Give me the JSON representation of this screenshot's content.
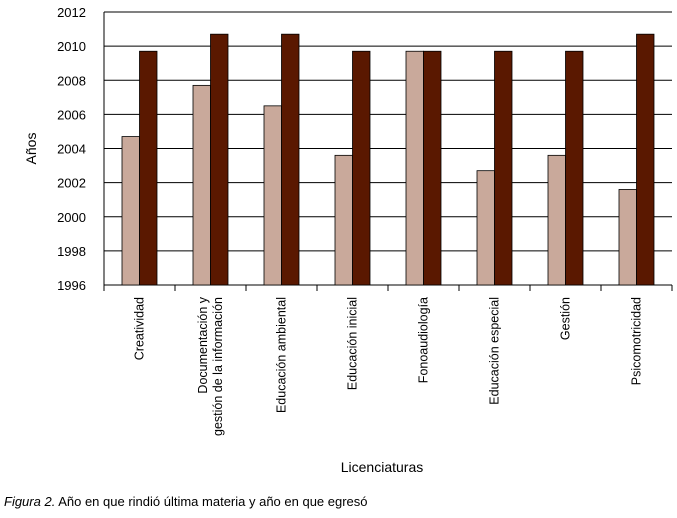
{
  "chart_data": {
    "type": "bar",
    "xlabel": "Licenciaturas",
    "ylabel": "Años",
    "ylim": [
      1996,
      2012
    ],
    "yticks": [
      1996,
      1998,
      2000,
      2002,
      2004,
      2006,
      2008,
      2010,
      2012
    ],
    "grid": true,
    "legend": "none",
    "categories": [
      "Creatividad",
      "Documentación y\ngestión de la información",
      "Educación ambiental",
      "Educación inicial",
      "Fonoaudiología",
      "Educación especial",
      "Gestión",
      "Psicomotricidad"
    ],
    "series": [
      {
        "color": "#c9a99b",
        "values": [
          2004.7,
          2007.7,
          2006.5,
          2003.6,
          2009.7,
          2002.7,
          2003.6,
          2001.6
        ]
      },
      {
        "color": "#5a1800",
        "values": [
          2009.7,
          2010.7,
          2010.7,
          2009.7,
          2009.7,
          2009.7,
          2009.7,
          2010.7
        ]
      }
    ]
  },
  "caption": {
    "figure_label": "Figura 2.",
    "text": " Año en que rindió última materia y año en que egresó"
  }
}
